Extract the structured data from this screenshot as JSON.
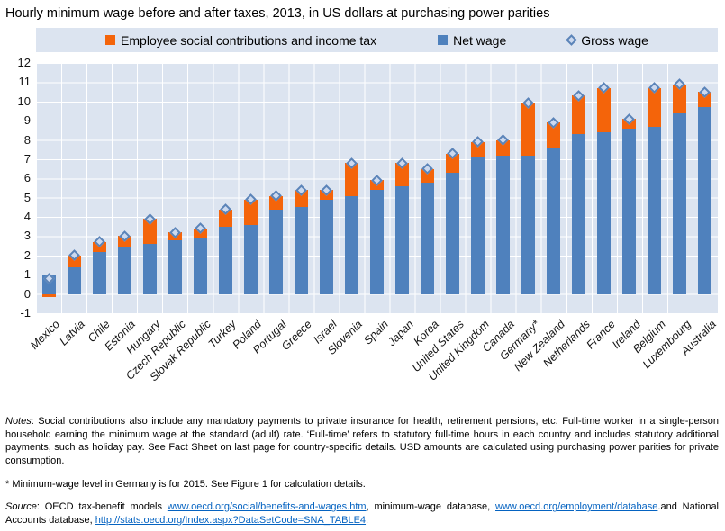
{
  "title": "Hourly minimum wage before and after taxes, 2013, in US dollars at purchasing power parities",
  "chart_data": {
    "type": "bar",
    "stacked": true,
    "title": "Hourly minimum wage before and after taxes, 2013, in US dollars at purchasing power parities",
    "categories": [
      "Mexico",
      "Latvia",
      "Chile",
      "Estonia",
      "Hungary",
      "Czech Republic",
      "Slovak Republic",
      "Turkey",
      "Poland",
      "Portugal",
      "Greece",
      "Israel",
      "Slovenia",
      "Spain",
      "Japan",
      "Korea",
      "United States",
      "United Kingdom",
      "Canada",
      "Germany*",
      "New Zealand",
      "Netherlands",
      "France",
      "Ireland",
      "Belgium",
      "Luxembourg",
      "Australia"
    ],
    "series": [
      {
        "name": "Employee social contributions and income tax",
        "role": "tax",
        "color": "#f4640a",
        "values": [
          -0.15,
          0.6,
          0.5,
          0.6,
          1.3,
          0.4,
          0.5,
          0.9,
          1.3,
          0.7,
          0.9,
          0.5,
          1.7,
          0.5,
          1.2,
          0.7,
          1.0,
          0.8,
          0.8,
          2.7,
          1.3,
          2.0,
          2.3,
          0.5,
          2.0,
          1.5,
          0.8
        ]
      },
      {
        "name": "Net wage",
        "role": "net",
        "color": "#4f81bd",
        "values": [
          0.95,
          1.4,
          2.2,
          2.4,
          2.6,
          2.8,
          2.9,
          3.5,
          3.6,
          4.4,
          4.5,
          4.9,
          5.1,
          5.4,
          5.6,
          5.8,
          6.3,
          7.1,
          7.2,
          7.2,
          7.6,
          8.3,
          8.4,
          8.6,
          8.7,
          9.4,
          9.7
        ]
      },
      {
        "name": "Gross wage",
        "role": "gross",
        "marker": "diamond",
        "marker_fill": "#ccd9ef",
        "marker_border": "#5b84b8",
        "values": [
          0.8,
          2.0,
          2.7,
          3.0,
          3.9,
          3.2,
          3.4,
          4.4,
          4.9,
          5.1,
          5.4,
          5.4,
          6.8,
          5.9,
          6.8,
          6.5,
          7.3,
          7.9,
          8.0,
          9.9,
          8.9,
          10.3,
          10.7,
          9.1,
          10.7,
          10.9,
          10.5
        ]
      }
    ],
    "ylim": [
      -1,
      12
    ],
    "y_ticks": [
      12,
      11,
      10,
      9,
      8,
      7,
      6,
      5,
      4,
      3,
      2,
      1,
      0,
      -1
    ],
    "grid": true,
    "gridline_color": "#ffffff",
    "plot_bg": "#dce4f0",
    "legend_position": "top",
    "xlabel": "",
    "ylabel": ""
  },
  "notes": {
    "label": "Notes",
    "text": ": Social contributions also include any mandatory payments to private insurance for health, retirement pensions, etc. Full-time worker in a single-person household earning the minimum wage at the standard (adult) rate. ‘Full-time’ refers to statutory full-time hours in each country and includes statutory additional payments, such as holiday pay. See Fact Sheet on last page for country-specific details. USD amounts are calculated using purchasing power parities for private consumption."
  },
  "footnote": "* Minimum-wage level in Germany is for 2015. See Figure 1 for calculation details.",
  "source": {
    "label": "Source",
    "pre": ": OECD tax-benefit models ",
    "link1": "www.oecd.org/social/benefits-and-wages.htm",
    "mid1": ", minimum-wage database, ",
    "link2": "www.oecd.org/employment/database",
    "mid2": ".and National Accounts database, ",
    "link3": "http://stats.oecd.org/Index.aspx?DataSetCode=SNA_TABLE4",
    "end": "."
  }
}
